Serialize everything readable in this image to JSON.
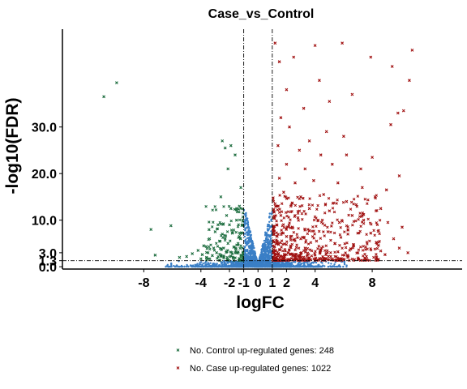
{
  "chart_data": {
    "type": "scatter",
    "title": "Case_vs_Control",
    "xlabel": "logFC",
    "ylabel": "-log10(FDR)",
    "xlim": [
      -13.7,
      14.3
    ],
    "ylim": [
      -0.5,
      51
    ],
    "x_ticks": [
      -8,
      -4,
      -2,
      -1,
      0,
      1,
      2,
      4,
      8
    ],
    "x_tick_labels": [
      "-8",
      "-4",
      "-2",
      "-1",
      "0",
      "1",
      "2",
      "4",
      "8"
    ],
    "y_ticks": [
      0,
      1.3,
      3,
      10,
      20,
      30
    ],
    "y_tick_labels": [
      "0.0",
      "1.3",
      "3.0",
      "10.0",
      "20.0",
      "30.0"
    ],
    "thresholds": {
      "logFC": [
        -1,
        1
      ],
      "neg_log10_fdr": 1.3
    },
    "grid": false,
    "legend_position": "bottom",
    "colors": {
      "down": "#1a6b3c",
      "up": "#a01010",
      "ns": "#3a7fc6"
    },
    "series": [
      {
        "name": "Control up-regulated",
        "label": "No. Control up-regulated genes: 248",
        "color": "#1a6b3c",
        "count": 248,
        "sample_points": [
          [
            -9.9,
            39.5
          ],
          [
            -10.8,
            36.5
          ],
          [
            -7.5,
            8.0
          ],
          [
            -6.1,
            8.8
          ],
          [
            -7.2,
            2.5
          ],
          [
            -5.5,
            2.0
          ],
          [
            -4.0,
            1.7
          ],
          [
            -2.5,
            27.0
          ],
          [
            -2.3,
            25.5
          ],
          [
            -1.9,
            26.0
          ],
          [
            -2.1,
            21.0
          ],
          [
            -1.6,
            24.0
          ],
          [
            -1.2,
            17.0
          ],
          [
            -2.6,
            15.0
          ],
          [
            -1.3,
            13.0
          ],
          [
            -1.9,
            12.5
          ],
          [
            -2.2,
            11.0
          ],
          [
            -1.5,
            10.0
          ],
          [
            -2.8,
            9.0
          ],
          [
            -2.0,
            9.0
          ],
          [
            -1.1,
            9.0
          ],
          [
            -3.0,
            7.5
          ],
          [
            -2.5,
            7.0
          ],
          [
            -1.8,
            7.2
          ],
          [
            -1.3,
            6.5
          ],
          [
            -3.4,
            6.0
          ],
          [
            -2.7,
            5.5
          ],
          [
            -2.1,
            5.0
          ],
          [
            -1.4,
            5.0
          ],
          [
            -3.8,
            4.5
          ],
          [
            -3.1,
            4.0
          ],
          [
            -2.4,
            4.0
          ],
          [
            -1.7,
            4.2
          ],
          [
            -1.1,
            4.0
          ],
          [
            -4.2,
            3.5
          ],
          [
            -3.5,
            3.0
          ],
          [
            -2.9,
            3.0
          ],
          [
            -2.2,
            3.2
          ],
          [
            -1.5,
            3.0
          ],
          [
            -4.6,
            2.8
          ],
          [
            -3.9,
            2.6
          ],
          [
            -3.2,
            2.4
          ],
          [
            -2.6,
            2.5
          ],
          [
            -1.9,
            2.3
          ],
          [
            -1.2,
            2.5
          ],
          [
            -1.6,
            1.9
          ],
          [
            -2.4,
            1.9
          ],
          [
            -3.6,
            1.9
          ],
          [
            -5.0,
            2.2
          ],
          [
            -1.1,
            1.8
          ]
        ]
      },
      {
        "name": "Case up-regulated",
        "label": "No. Case up-regulated genes: 1022",
        "color": "#a01010",
        "count": 1022,
        "sample_points": [
          [
            5.9,
            48.0
          ],
          [
            4.0,
            47.5
          ],
          [
            1.2,
            48.0
          ],
          [
            9.4,
            43.0
          ],
          [
            10.8,
            46.5
          ],
          [
            10.6,
            40.0
          ],
          [
            4.3,
            40.0
          ],
          [
            1.5,
            44.0
          ],
          [
            2.5,
            45.0
          ],
          [
            7.9,
            45.0
          ],
          [
            2.0,
            38.0
          ],
          [
            6.6,
            37.0
          ],
          [
            10.2,
            33.5
          ],
          [
            5.0,
            35.5
          ],
          [
            9.8,
            33.0
          ],
          [
            3.2,
            34.0
          ],
          [
            1.6,
            32.0
          ],
          [
            2.2,
            30.0
          ],
          [
            4.8,
            29.0
          ],
          [
            9.3,
            30.5
          ],
          [
            6.0,
            28.0
          ],
          [
            3.6,
            27.0
          ],
          [
            1.4,
            26.0
          ],
          [
            2.9,
            25.0
          ],
          [
            4.4,
            24.0
          ],
          [
            6.2,
            24.0
          ],
          [
            8.0,
            23.5
          ],
          [
            9.9,
            19.5
          ],
          [
            2.0,
            22.0
          ],
          [
            3.3,
            21.0
          ],
          [
            5.2,
            22.0
          ],
          [
            7.2,
            21.0
          ],
          [
            1.5,
            19.0
          ],
          [
            2.6,
            18.0
          ],
          [
            3.9,
            18.5
          ],
          [
            5.6,
            18.0
          ],
          [
            7.3,
            17.0
          ],
          [
            9.0,
            16.5
          ],
          [
            1.8,
            16.0
          ],
          [
            3.0,
            15.0
          ],
          [
            4.6,
            15.5
          ],
          [
            6.2,
            14.0
          ],
          [
            8.2,
            15.0
          ],
          [
            1.2,
            13.5
          ],
          [
            2.3,
            13.0
          ],
          [
            3.6,
            12.5
          ],
          [
            5.0,
            12.0
          ],
          [
            6.6,
            11.0
          ],
          [
            8.6,
            12.5
          ],
          [
            1.6,
            11.0
          ],
          [
            2.8,
            10.5
          ],
          [
            4.2,
            10.0
          ],
          [
            5.7,
            9.5
          ],
          [
            7.4,
            10.0
          ],
          [
            9.1,
            9.5
          ],
          [
            1.3,
            9.0
          ],
          [
            2.4,
            8.5
          ],
          [
            3.5,
            8.0
          ],
          [
            4.9,
            7.5
          ],
          [
            6.3,
            7.0
          ],
          [
            7.9,
            7.2
          ],
          [
            10.1,
            8.5
          ],
          [
            1.1,
            7.0
          ],
          [
            2.0,
            6.5
          ],
          [
            3.0,
            6.0
          ],
          [
            4.1,
            5.5
          ],
          [
            5.4,
            5.0
          ],
          [
            6.7,
            4.5
          ],
          [
            8.3,
            5.2
          ],
          [
            9.5,
            6.0
          ],
          [
            1.4,
            5.0
          ],
          [
            2.3,
            4.5
          ],
          [
            3.3,
            4.0
          ],
          [
            4.4,
            3.5
          ],
          [
            5.6,
            3.2
          ],
          [
            7.0,
            3.0
          ],
          [
            8.6,
            3.4
          ],
          [
            9.9,
            4.0
          ],
          [
            1.2,
            3.5
          ],
          [
            2.1,
            3.0
          ],
          [
            3.0,
            2.8
          ],
          [
            4.0,
            2.5
          ],
          [
            5.1,
            2.2
          ],
          [
            6.3,
            2.0
          ],
          [
            7.6,
            2.2
          ],
          [
            8.9,
            2.6
          ],
          [
            10.5,
            3.0
          ],
          [
            1.6,
            2.2
          ],
          [
            2.6,
            2.0
          ],
          [
            3.6,
            1.9
          ],
          [
            4.6,
            1.8
          ],
          [
            5.8,
            1.7
          ],
          [
            7.0,
            1.6
          ],
          [
            1.3,
            2.0
          ],
          [
            2.9,
            2.4
          ]
        ]
      }
    ]
  }
}
